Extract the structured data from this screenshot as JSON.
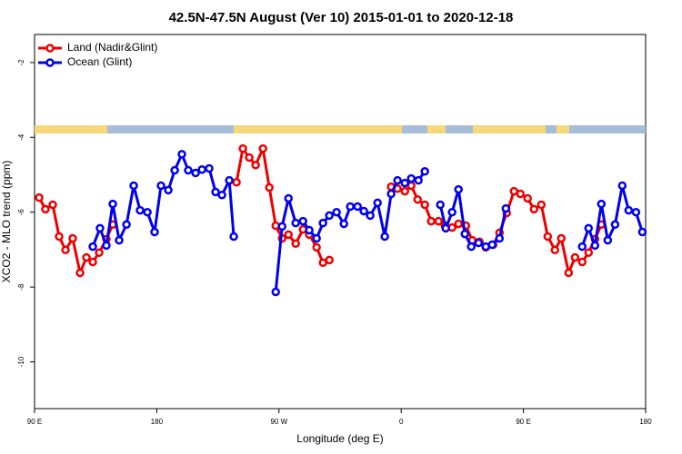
{
  "chart_data": {
    "type": "line",
    "title": "42.5N-47.5N August (Ver 10)   2015-01-01 to 2020-12-18",
    "xlabel": "Longitude (deg E)",
    "ylabel": "XCO2 - MLO trend (ppm)",
    "xlim": [
      90,
      540
    ],
    "ylim": [
      -11.25,
      -1.25
    ],
    "xticks": [
      {
        "value": 90,
        "label": "90 E"
      },
      180,
      {
        "value": 270,
        "label": "90 W"
      },
      {
        "value": 360,
        "label": "0"
      },
      {
        "value": 450,
        "label": "90 E"
      },
      {
        "value": 540,
        "label": "180"
      }
    ],
    "yticks": [
      -2,
      -4,
      -6,
      -8,
      -10
    ],
    "legend": "top-left",
    "series": [
      {
        "name": "Land (Nadir&Glint)",
        "color": "#ee0000",
        "x": [
          93.4,
          98,
          103.4,
          108.1,
          112.8,
          118.1,
          123.5,
          128.2,
          132.9,
          137.6,
          142.9,
          147.6,
          190,
          238.7,
          243.4,
          248.1,
          252.8,
          258.2,
          262.9,
          267.6,
          272.3,
          277,
          282.3,
          287.7,
          292.3,
          297.7,
          302.4,
          307.1,
          330,
          352.6,
          357.3,
          362.7,
          367.4,
          372.1,
          377.4,
          382.1,
          387.5,
          392.2,
          397.5,
          402.2,
          407.6,
          412.3,
          417.6,
          422.3,
          427.7,
          432.4,
          437.7,
          443.1,
          447.8,
          453.1,
          457.8,
          463.2,
          467.9,
          473.2,
          477.9,
          483.3,
          488,
          493.3,
          498,
          502.7,
          507.4
        ],
        "values": [
          -5.61,
          -5.92,
          -5.8,
          -6.65,
          -7.01,
          -6.7,
          -7.62,
          -7.21,
          -7.33,
          -7.08,
          -6.72,
          -6.33,
          null,
          -5.2,
          -4.3,
          -4.54,
          -4.74,
          -4.3,
          -5.34,
          -6.36,
          -6.7,
          -6.6,
          -6.84,
          -6.46,
          -6.6,
          -6.94,
          -7.35,
          -7.28,
          null,
          -5.32,
          -5.37,
          -5.44,
          -5.29,
          -5.66,
          -5.8,
          -6.24,
          -6.24,
          -6.36,
          -6.41,
          -6.31,
          -6.36,
          -6.75,
          -6.79,
          -6.94,
          -6.87,
          -6.55,
          -6.02,
          -5.44,
          -5.51,
          -5.63,
          -5.92,
          -5.8,
          -6.65,
          -7.01,
          -6.7,
          -7.62,
          -7.21,
          -7.33,
          -7.08,
          -6.72,
          -6.33
        ]
      },
      {
        "name": "Ocean (Glint)",
        "color": "#0000ee",
        "x": [
          132.9,
          138.2,
          142.9,
          147.6,
          152.3,
          157.7,
          163,
          167.7,
          173.1,
          178.4,
          183.1,
          188.5,
          193.2,
          198.5,
          203.2,
          208.6,
          213.3,
          218.6,
          223.3,
          228,
          233.4,
          236.7,
          250,
          267.6,
          272.3,
          277,
          282.3,
          287.7,
          292.3,
          297.7,
          302.4,
          307.1,
          312.4,
          317.8,
          322.5,
          327.9,
          332.5,
          337.2,
          342.6,
          347.9,
          352.6,
          357.3,
          362.7,
          367.4,
          372.7,
          377.4,
          383,
          388.8,
          392.8,
          397.5,
          402.2,
          406.9,
          411.6,
          417,
          422.3,
          427,
          432.4,
          437.1,
          470,
          493.3,
          498,
          502.7,
          507.4,
          512.1,
          517.5,
          522.8,
          527.5,
          532.9,
          537.6
        ],
        "values": [
          -6.92,
          -6.43,
          -6.89,
          -5.78,
          -6.75,
          -6.33,
          -5.29,
          -5.95,
          -6.0,
          -6.53,
          -5.29,
          -5.41,
          -4.88,
          -4.45,
          -4.88,
          -4.95,
          -4.86,
          -4.83,
          -5.46,
          -5.54,
          -5.15,
          -6.65,
          null,
          -8.13,
          -6.38,
          -5.63,
          -6.29,
          -6.24,
          -6.48,
          -6.7,
          -6.29,
          -6.09,
          -6.0,
          -6.31,
          -5.85,
          -5.85,
          -5.97,
          -6.09,
          -5.75,
          -6.65,
          -5.51,
          -5.15,
          -5.22,
          -5.1,
          -5.15,
          -4.91,
          null,
          -5.8,
          -6.43,
          -6.0,
          -5.39,
          -6.58,
          -6.92,
          -6.82,
          -6.92,
          -6.87,
          -6.7,
          -5.9,
          null,
          -6.92,
          -6.43,
          -6.89,
          -5.78,
          -6.75,
          -6.33,
          -5.29,
          -5.95,
          -6.0,
          -6.53
        ]
      }
    ]
  }
}
